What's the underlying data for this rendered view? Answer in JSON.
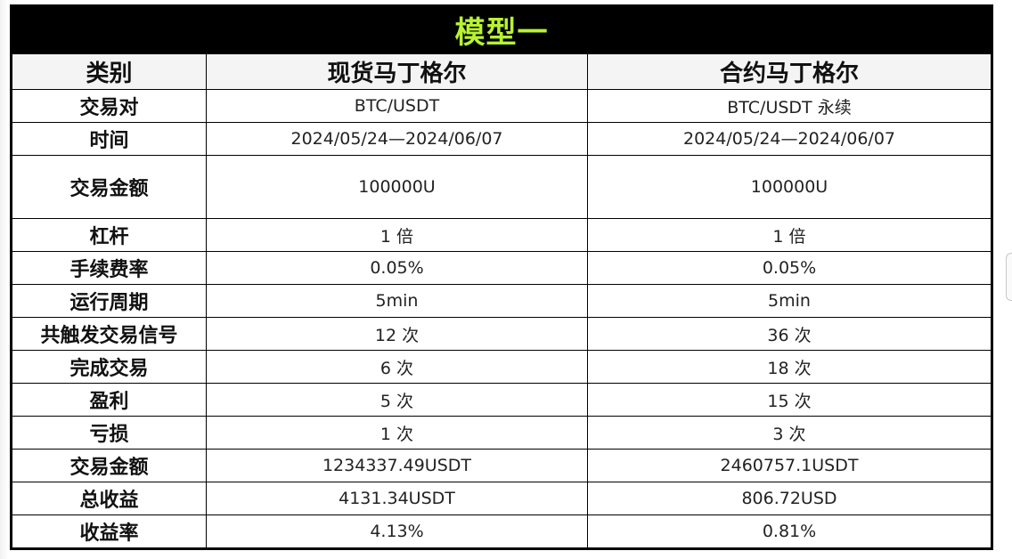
{
  "title": "模型一",
  "headers": [
    "类别",
    "现货马丁格尔",
    "合约马丁格尔"
  ],
  "rows": [
    {
      "label": "交易对",
      "spot": "BTC/USDT",
      "contract": "BTC/USDT 永续"
    },
    {
      "label": "时间",
      "spot": "2024/05/24—2024/06/07",
      "contract": "2024/05/24—2024/06/07"
    },
    {
      "label": "交易金额",
      "spot": "100000U",
      "contract": "100000U"
    },
    {
      "label": "杠杆",
      "spot": "1 倍",
      "contract": "1 倍"
    },
    {
      "label": "手续费率",
      "spot": "0.05%",
      "contract": "0.05%"
    },
    {
      "label": "运行周期",
      "spot": "5min",
      "contract": "5min"
    },
    {
      "label": "共触发交易信号",
      "spot": "12 次",
      "contract": "36 次"
    },
    {
      "label": "完成交易",
      "spot": "6 次",
      "contract": "18 次"
    },
    {
      "label": "盈利",
      "spot": "5 次",
      "contract": "15 次"
    },
    {
      "label": "亏损",
      "spot": "1 次",
      "contract": "3 次"
    },
    {
      "label": "交易金额",
      "spot": "1234337.49USDT",
      "contract": "2460757.1USDT"
    },
    {
      "label": "总收益",
      "spot": "4131.34USDT",
      "contract": "806.72USD"
    },
    {
      "label": "收益率",
      "spot": "4.13%",
      "contract": "0.81%"
    }
  ],
  "colors": {
    "title_bg": "#000000",
    "title_text": "#b7f330"
  }
}
